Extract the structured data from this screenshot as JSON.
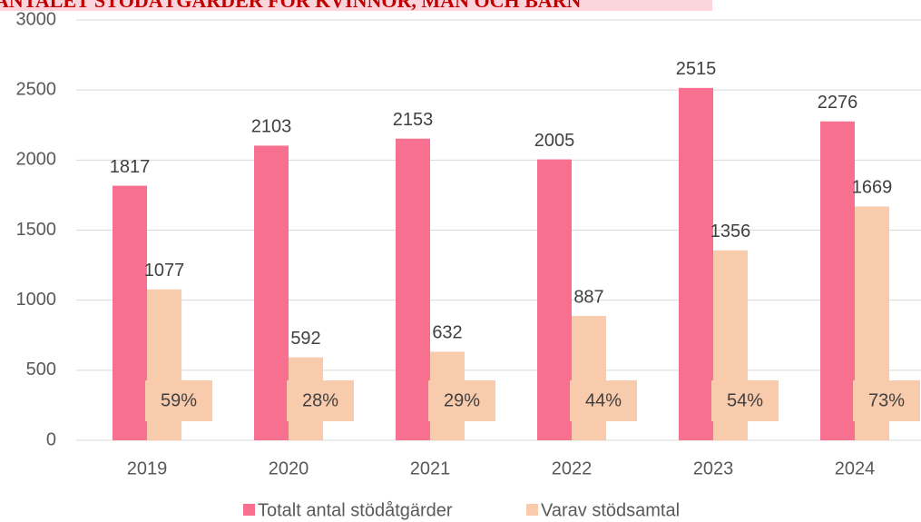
{
  "chart_data": {
    "type": "bar",
    "title": "ANTALET STÖDÅTGÄRDER FÖR KVINNOR, MÄN OCH BARN",
    "categories": [
      "2019",
      "2020",
      "2021",
      "2022",
      "2023",
      "2024"
    ],
    "series": [
      {
        "name": "Totalt antal stödåtgärder",
        "color": "#f7708f",
        "values": [
          1817,
          2103,
          2153,
          2005,
          2515,
          2276
        ]
      },
      {
        "name": "Varav stödsamtal",
        "color": "#f8cbad",
        "values": [
          1077,
          592,
          632,
          887,
          1356,
          1669
        ]
      }
    ],
    "shares": {
      "values": [
        59,
        28,
        29,
        44,
        54,
        73
      ],
      "value_labels": [
        "59%",
        "28%",
        "29%",
        "44%",
        "54%",
        "73%"
      ],
      "color": "#f8cbad"
    },
    "ylim": [
      0,
      3000
    ],
    "yticks": [
      0,
      500,
      1000,
      1500,
      2000,
      2500,
      3000
    ],
    "grid": true,
    "legend": "bottom"
  }
}
